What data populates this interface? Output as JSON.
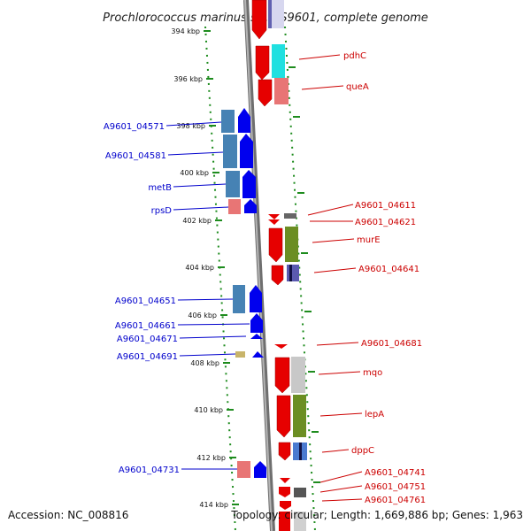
{
  "title": "Prochlorococcus marinus str. AS9601, complete genome",
  "footer": {
    "accession": "Accession: NC_008816",
    "summary": "Topology: circular; Length: 1,669,886 bp; Genes: 1,963"
  },
  "colors": {
    "backbone": "#8a8a8a",
    "tick": "#1e8c1e",
    "left_label": "#0000cc",
    "right_label": "#cc0000"
  },
  "ticks": [
    "394 kbp",
    "396 kbp",
    "398 kbp",
    "400 kbp",
    "402 kbp",
    "404 kbp",
    "406 kbp",
    "408 kbp",
    "410 kbp",
    "412 kbp",
    "414 kbp"
  ],
  "left_labels": [
    "A9601_04571",
    "A9601_04581",
    "metB",
    "rpsD",
    "A9601_04651",
    "A9601_04661",
    "A9601_04671",
    "A9601_04691",
    "A9601_04731"
  ],
  "right_labels": [
    "pdhC",
    "queA",
    "A9601_04611",
    "A9601_04621",
    "murE",
    "A9601_04641",
    "A9601_04681",
    "mqo",
    "lepA",
    "dppC",
    "A9601_04741",
    "A9601_04751",
    "A9601_04761"
  ]
}
